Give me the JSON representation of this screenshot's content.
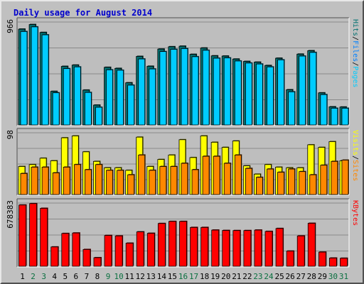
{
  "window": {
    "title": "Daily usage for August 2014"
  },
  "colors": {
    "background": "#c0c0c0",
    "plot_bg": "#bebebe",
    "grid": "#8a8a8a",
    "title": "#0000cc",
    "pages": "#00ccff",
    "files": "#0080ff",
    "hits": "#007070",
    "visits": "#ffff00",
    "sites": "#ff8800",
    "kbytes": "#ff0000",
    "weekday_label": "#000000",
    "weekend_label": "#0a7040"
  },
  "chart_data": [
    {
      "type": "bar",
      "title": "Daily usage for August 2014",
      "ymax_label": "966",
      "ylim": [
        0,
        966
      ],
      "grid": true,
      "legend": [
        {
          "text": "Pages",
          "color_key": "pages"
        },
        {
          "text": "/",
          "color_key": "slash"
        },
        {
          "text": "Files",
          "color_key": "files"
        },
        {
          "text": "/",
          "color_key": "slash"
        },
        {
          "text": "Hits",
          "color_key": "hits"
        }
      ],
      "series": [
        {
          "name": "Hits",
          "color_key": "hits",
          "values": [
            893,
            936,
            862,
            313,
            546,
            558,
            325,
            185,
            537,
            527,
            393,
            639,
            547,
            707,
            729,
            734,
            658,
            717,
            644,
            642,
            614,
            592,
            585,
            554,
            622,
            328,
            660,
            692,
            299,
            169,
            167
          ]
        },
        {
          "name": "Pages",
          "color_key": "pages",
          "values": [
            871,
            914,
            840,
            300,
            525,
            541,
            303,
            165,
            514,
            510,
            371,
            615,
            522,
            684,
            705,
            712,
            636,
            696,
            622,
            625,
            596,
            577,
            568,
            541,
            607,
            309,
            642,
            676,
            283,
            156,
            156
          ]
        }
      ]
    },
    {
      "type": "bar",
      "ymax_label": "98",
      "ylim": [
        0,
        98
      ],
      "grid": true,
      "legend": [
        {
          "text": "Sites",
          "color_key": "sites"
        },
        {
          "text": "/",
          "color_key": "slash"
        },
        {
          "text": "Visits",
          "color_key": "visits"
        }
      ],
      "series": [
        {
          "name": "Visits",
          "color_key": "visits",
          "values": [
            44,
            47,
            57,
            53,
            89,
            92,
            67,
            52,
            42,
            42,
            38,
            90,
            44,
            55,
            62,
            86,
            58,
            92,
            82,
            74,
            84,
            45,
            32,
            47,
            43,
            42,
            42,
            78,
            74,
            83,
            53
          ]
        },
        {
          "name": "Sites",
          "color_key": "sites",
          "values": [
            33,
            43,
            43,
            34,
            43,
            47,
            39,
            47,
            38,
            38,
            31,
            62,
            38,
            44,
            44,
            49,
            39,
            60,
            60,
            49,
            62,
            41,
            27,
            40,
            35,
            40,
            36,
            31,
            46,
            52,
            54
          ]
        }
      ]
    },
    {
      "type": "bar",
      "ymax_label": "678383",
      "ylim": [
        0,
        678383
      ],
      "grid": true,
      "legend": [
        {
          "text": "KBytes",
          "color_key": "kbytes"
        }
      ],
      "series": [
        {
          "name": "KBytes",
          "color_key": "kbytes",
          "values": [
            650000,
            665000,
            615000,
            205000,
            348000,
            353000,
            178000,
            91000,
            327000,
            322000,
            245000,
            365000,
            350000,
            454000,
            476000,
            476000,
            412000,
            412000,
            384000,
            380000,
            379000,
            379000,
            384000,
            370000,
            401000,
            161000,
            322000,
            456000,
            150000,
            87000,
            85000
          ]
        }
      ]
    }
  ],
  "x_axis": {
    "days": [
      "1",
      "2",
      "3",
      "4",
      "5",
      "6",
      "7",
      "8",
      "9",
      "10",
      "11",
      "12",
      "13",
      "14",
      "15",
      "16",
      "17",
      "18",
      "19",
      "20",
      "21",
      "22",
      "23",
      "24",
      "25",
      "26",
      "27",
      "28",
      "29",
      "30",
      "31"
    ],
    "weekend": [
      false,
      true,
      true,
      false,
      false,
      false,
      false,
      false,
      true,
      true,
      false,
      false,
      false,
      false,
      false,
      true,
      true,
      false,
      false,
      false,
      false,
      false,
      true,
      true,
      false,
      false,
      false,
      false,
      false,
      true,
      true
    ]
  }
}
